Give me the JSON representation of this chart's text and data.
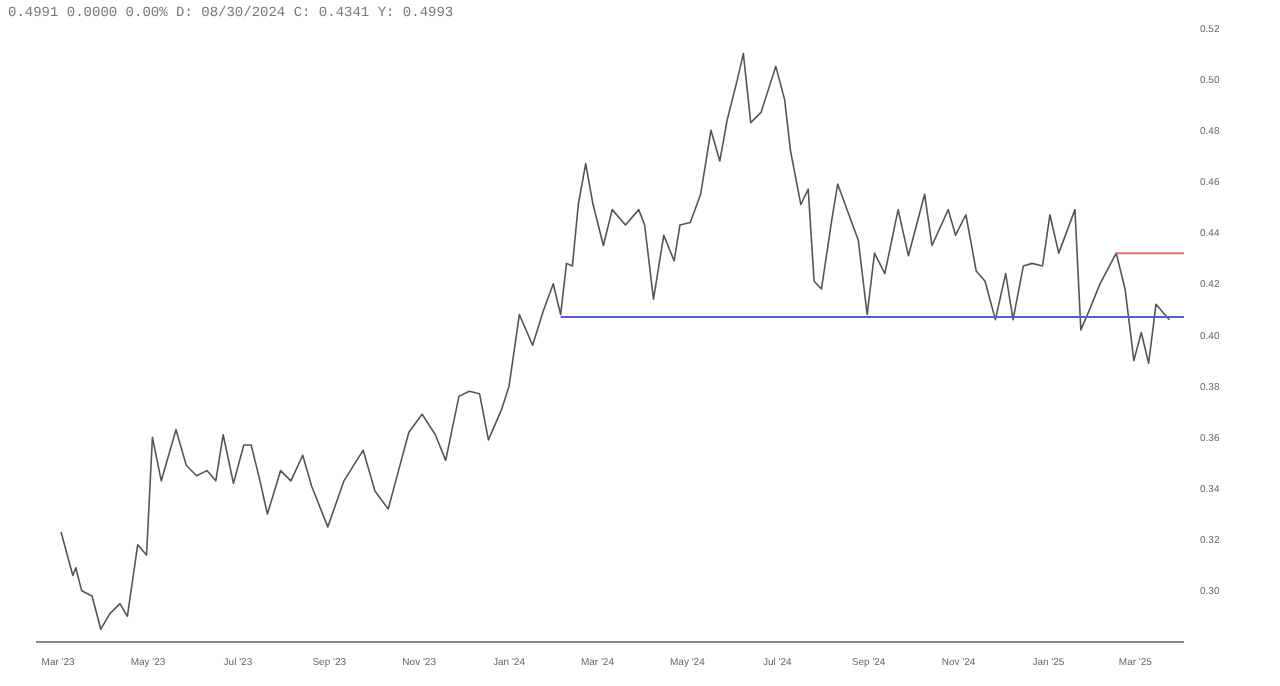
{
  "chart_data": {
    "type": "line",
    "annotations": [
      "0.4991 0.0000 0.00% D: 08/30/2024 C: 0.4341 Y: 0.4993"
    ],
    "x": [
      "2023-03-03",
      "2023-03-11",
      "2023-03-13",
      "2023-03-17",
      "2023-03-24",
      "2023-03-30",
      "2023-04-05",
      "2023-04-12",
      "2023-04-17",
      "2023-04-24",
      "2023-04-30",
      "2023-05-04",
      "2023-05-10",
      "2023-05-20",
      "2023-05-27",
      "2023-06-03",
      "2023-06-10",
      "2023-06-16",
      "2023-06-21",
      "2023-06-28",
      "2023-07-05",
      "2023-07-10",
      "2023-07-16",
      "2023-07-21",
      "2023-07-30",
      "2023-08-06",
      "2023-08-14",
      "2023-08-20",
      "2023-08-31",
      "2023-09-11",
      "2023-09-24",
      "2023-10-02",
      "2023-10-11",
      "2023-10-18",
      "2023-10-25",
      "2023-11-03",
      "2023-11-12",
      "2023-11-19",
      "2023-11-28",
      "2023-12-05",
      "2023-12-12",
      "2023-12-18",
      "2023-12-27",
      "2024-01-01",
      "2024-01-08",
      "2024-01-17",
      "2024-01-24",
      "2024-01-31",
      "2024-02-05",
      "2024-02-09",
      "2024-02-13",
      "2024-02-17",
      "2024-02-22",
      "2024-02-27",
      "2024-03-05",
      "2024-03-11",
      "2024-03-20",
      "2024-03-29",
      "2024-04-02",
      "2024-04-08",
      "2024-04-15",
      "2024-04-22",
      "2024-04-26",
      "2024-05-03",
      "2024-05-10",
      "2024-05-17",
      "2024-05-23",
      "2024-05-28",
      "2024-06-04",
      "2024-06-08",
      "2024-06-13",
      "2024-06-20",
      "2024-06-30",
      "2024-07-06",
      "2024-07-10",
      "2024-07-17",
      "2024-07-22",
      "2024-07-26",
      "2024-07-31",
      "2024-08-07",
      "2024-08-11",
      "2024-08-18",
      "2024-08-25",
      "2024-08-31",
      "2024-09-05",
      "2024-09-12",
      "2024-09-21",
      "2024-09-28",
      "2024-10-09",
      "2024-10-14",
      "2024-10-25",
      "2024-10-30",
      "2024-11-06",
      "2024-11-13",
      "2024-11-19",
      "2024-11-26",
      "2024-12-03",
      "2024-12-08",
      "2024-12-15",
      "2024-12-21",
      "2024-12-28",
      "2025-01-02",
      "2025-01-08",
      "2025-01-19",
      "2025-01-23",
      "2025-01-29",
      "2025-02-05",
      "2025-02-16",
      "2025-02-22",
      "2025-02-28",
      "2025-03-05",
      "2025-03-10",
      "2025-03-15",
      "2025-03-24"
    ],
    "series": [
      {
        "color": "#555555",
        "values": [
          0.323,
          0.306,
          0.309,
          0.3,
          0.298,
          0.285,
          0.291,
          0.295,
          0.29,
          0.318,
          0.314,
          0.36,
          0.343,
          0.363,
          0.349,
          0.345,
          0.347,
          0.343,
          0.361,
          0.342,
          0.357,
          0.357,
          0.343,
          0.33,
          0.347,
          0.343,
          0.353,
          0.341,
          0.325,
          0.343,
          0.355,
          0.339,
          0.332,
          0.347,
          0.362,
          0.369,
          0.361,
          0.351,
          0.376,
          0.378,
          0.377,
          0.359,
          0.371,
          0.38,
          0.408,
          0.396,
          0.409,
          0.42,
          0.408,
          0.428,
          0.427,
          0.451,
          0.467,
          0.451,
          0.435,
          0.449,
          0.443,
          0.449,
          0.443,
          0.414,
          0.439,
          0.429,
          0.443,
          0.444,
          0.455,
          0.48,
          0.468,
          0.484,
          0.5,
          0.51,
          0.483,
          0.487,
          0.505,
          0.492,
          0.472,
          0.451,
          0.457,
          0.421,
          0.418,
          0.445,
          0.459,
          0.448,
          0.437,
          0.408,
          0.432,
          0.424,
          0.449,
          0.431,
          0.455,
          0.435,
          0.449,
          0.439,
          0.447,
          0.425,
          0.421,
          0.406,
          0.424,
          0.406,
          0.427,
          0.428,
          0.427,
          0.447,
          0.432,
          0.449,
          0.402,
          0.41,
          0.42,
          0.432,
          0.418,
          0.39,
          0.401,
          0.389,
          0.412,
          0.406
        ]
      },
      {
        "color": "#5a5ad2",
        "x": [
          "2024-02-05",
          "2025-04-03"
        ],
        "values": [
          0.407,
          0.407
        ]
      },
      {
        "color": "#e0707a",
        "x": [
          "2025-02-16",
          "2025-04-03"
        ],
        "values": [
          0.432,
          0.432
        ]
      }
    ],
    "xlim": [
      "2023-02-14",
      "2025-04-03"
    ],
    "xticks": [
      {
        "value": "2023-03-01",
        "label": "Mar '23"
      },
      {
        "value": "2023-05-01",
        "label": "May '23"
      },
      {
        "value": "2023-07-01",
        "label": "Jul '23"
      },
      {
        "value": "2023-09-01",
        "label": "Sep '23"
      },
      {
        "value": "2023-11-01",
        "label": "Nov '23"
      },
      {
        "value": "2024-01-01",
        "label": "Jan '24"
      },
      {
        "value": "2024-03-01",
        "label": "Mar '24"
      },
      {
        "value": "2024-05-01",
        "label": "May '24"
      },
      {
        "value": "2024-07-01",
        "label": "Jul '24"
      },
      {
        "value": "2024-09-01",
        "label": "Sep '24"
      },
      {
        "value": "2024-11-01",
        "label": "Nov '24"
      },
      {
        "value": "2025-01-01",
        "label": "Jan '25"
      },
      {
        "value": "2025-03-01",
        "label": "Mar '25"
      }
    ],
    "ylim": [
      0.28,
      0.52
    ],
    "yticks": [
      {
        "value": 0.3,
        "label": "0.30"
      },
      {
        "value": 0.32,
        "label": "0.32"
      },
      {
        "value": 0.34,
        "label": "0.34"
      },
      {
        "value": 0.36,
        "label": "0.36"
      },
      {
        "value": 0.38,
        "label": "0.38"
      },
      {
        "value": 0.4,
        "label": "0.40"
      },
      {
        "value": 0.42,
        "label": "0.42"
      },
      {
        "value": 0.44,
        "label": "0.44"
      },
      {
        "value": 0.46,
        "label": "0.46"
      },
      {
        "value": 0.48,
        "label": "0.48"
      },
      {
        "value": 0.5,
        "label": "0.50"
      },
      {
        "value": 0.52,
        "label": "0.52"
      }
    ],
    "marker": "none",
    "line_style": "solid",
    "grid": false,
    "legend": false
  }
}
